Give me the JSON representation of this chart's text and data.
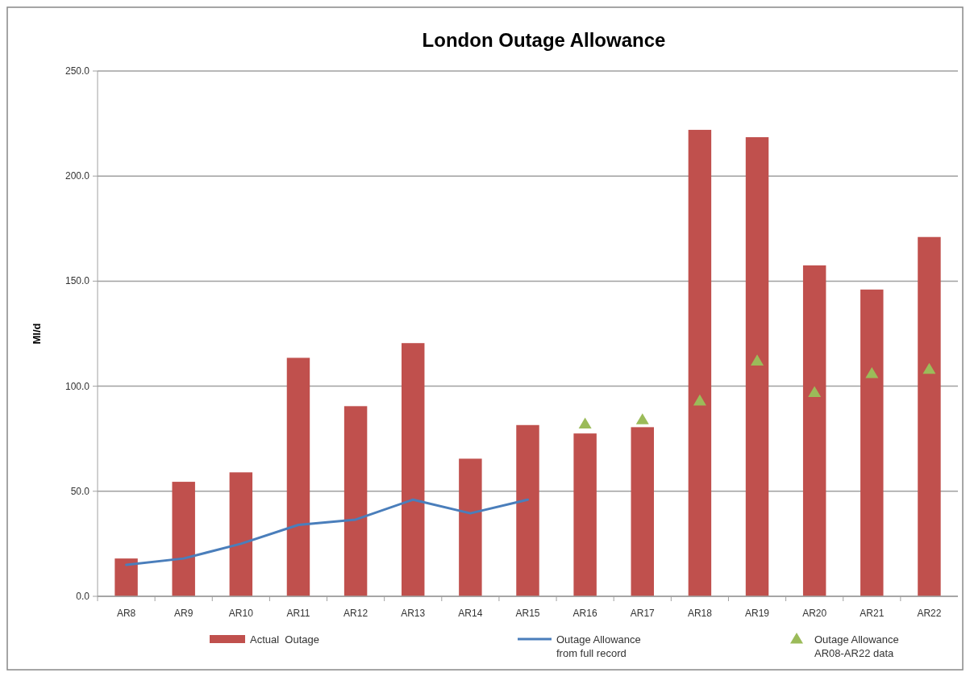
{
  "chart_data": {
    "type": "bar",
    "title": "London Outage Allowance",
    "ylabel": "Ml/d",
    "categories": [
      "AR8",
      "AR9",
      "AR10",
      "AR11",
      "AR12",
      "AR13",
      "AR14",
      "AR15",
      "AR16",
      "AR17",
      "AR18",
      "AR19",
      "AR20",
      "AR21",
      "AR22"
    ],
    "series": [
      {
        "name": "Actual  Outage",
        "color": "#c0504d",
        "values": [
          18,
          54.5,
          59,
          113.5,
          90.5,
          120.5,
          65.5,
          81.5,
          77.5,
          80.5,
          222,
          218.5,
          157.5,
          146,
          171
        ]
      },
      {
        "name": "Outage Allowance\nfrom full record",
        "type": "line",
        "color": "#4a7ebb",
        "marker": "none",
        "values": [
          15,
          18,
          25,
          34,
          36.5,
          46,
          39.5,
          46,
          null,
          null,
          null,
          null,
          null,
          null,
          null
        ]
      },
      {
        "name": "Outage Allowance\nAR08-AR22 data",
        "type": "scatter",
        "color": "#9bbb59",
        "marker": "triangle",
        "values": [
          null,
          null,
          null,
          null,
          null,
          null,
          null,
          null,
          82,
          84,
          93,
          112,
          97,
          106,
          108
        ]
      }
    ],
    "ylim": [
      0,
      250
    ],
    "yticks": [
      {
        "value": 0,
        "label": "0.0"
      },
      {
        "value": 50,
        "label": "50.0"
      },
      {
        "value": 100,
        "label": "100.0"
      },
      {
        "value": 150,
        "label": "150.0"
      },
      {
        "value": 200,
        "label": "200.0"
      },
      {
        "value": 250,
        "label": "250.0"
      }
    ],
    "grid": "y",
    "legend": "bottom"
  }
}
